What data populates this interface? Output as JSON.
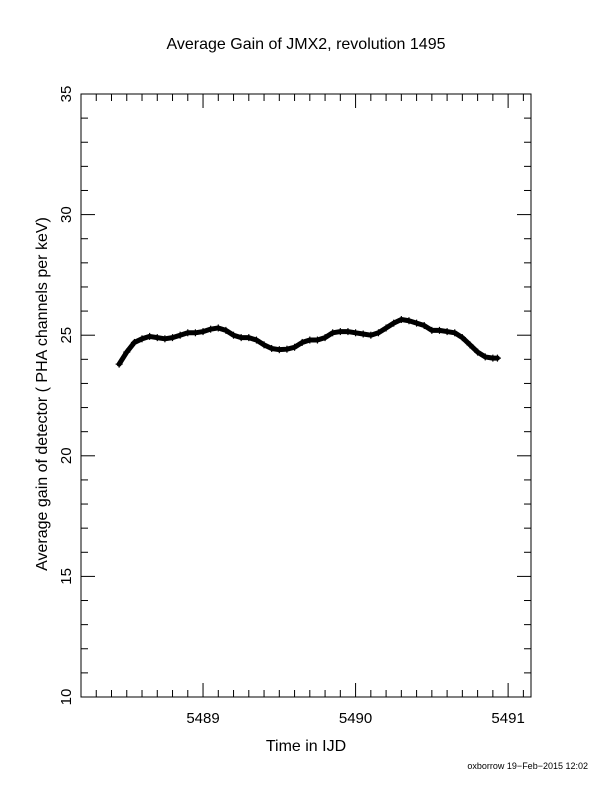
{
  "chart_data": {
    "type": "line",
    "title": "Average Gain of JMX2, revolution 1495",
    "xlabel": "Time in IJD",
    "ylabel": "Average gain of detector ( PHA channels per keV)",
    "xlim": [
      5488.2,
      5491.15
    ],
    "ylim": [
      10,
      35
    ],
    "x_ticks": [
      5489,
      5490,
      5491
    ],
    "y_ticks": [
      10,
      15,
      20,
      25,
      30,
      35
    ],
    "grid": false,
    "series": [
      {
        "marker": "plus",
        "color": "#000000",
        "x": [
          5488.45,
          5488.5,
          5488.55,
          5488.6,
          5488.65,
          5488.7,
          5488.75,
          5488.8,
          5488.85,
          5488.9,
          5488.95,
          5489.0,
          5489.05,
          5489.1,
          5489.15,
          5489.2,
          5489.25,
          5489.3,
          5489.35,
          5489.4,
          5489.45,
          5489.5,
          5489.55,
          5489.6,
          5489.65,
          5489.7,
          5489.75,
          5489.8,
          5489.85,
          5489.9,
          5489.95,
          5490.0,
          5490.05,
          5490.1,
          5490.15,
          5490.2,
          5490.25,
          5490.3,
          5490.35,
          5490.4,
          5490.45,
          5490.5,
          5490.55,
          5490.6,
          5490.65,
          5490.7,
          5490.75,
          5490.8,
          5490.85,
          5490.9,
          5490.93
        ],
        "y": [
          23.8,
          24.3,
          24.7,
          24.85,
          24.95,
          24.9,
          24.85,
          24.9,
          25.0,
          25.1,
          25.1,
          25.15,
          25.25,
          25.3,
          25.2,
          25.0,
          24.9,
          24.9,
          24.8,
          24.6,
          24.45,
          24.4,
          24.42,
          24.5,
          24.7,
          24.8,
          24.8,
          24.9,
          25.1,
          25.15,
          25.15,
          25.1,
          25.05,
          25.0,
          25.1,
          25.3,
          25.5,
          25.65,
          25.6,
          25.5,
          25.4,
          25.2,
          25.2,
          25.15,
          25.1,
          24.9,
          24.6,
          24.3,
          24.1,
          24.05,
          24.05
        ]
      }
    ]
  },
  "footer": "oxborrow 19−Feb−2015 12:02"
}
